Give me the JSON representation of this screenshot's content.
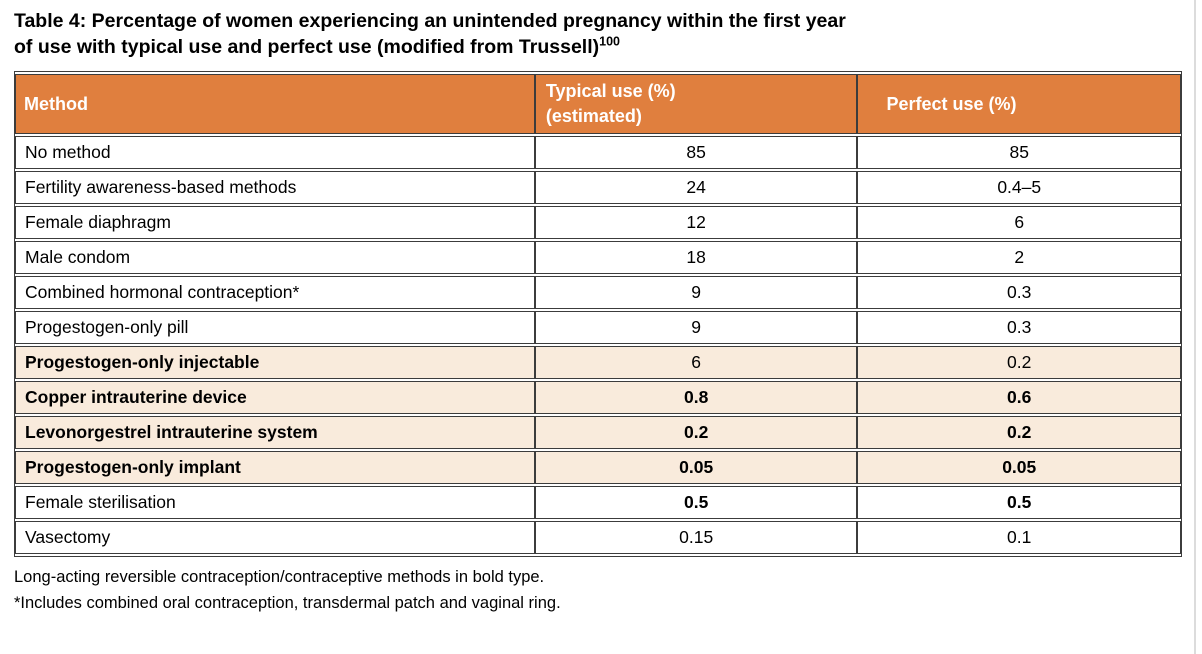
{
  "title": {
    "line1": "Table 4: Percentage of women experiencing an unintended pregnancy within the first year",
    "line2": "of use with typical use and perfect use (modified from Trussell)",
    "reference": "100"
  },
  "table": {
    "header": {
      "method": "Method",
      "typical_line1": "Typical use (%)",
      "typical_line2": "(estimated)",
      "perfect": "Perfect use (%)"
    },
    "rows": [
      {
        "method": "No method",
        "typical": "85",
        "perfect": "85",
        "method_bold": false,
        "values_bold": false,
        "highlight": false
      },
      {
        "method": "Fertility awareness-based methods",
        "typical": "24",
        "perfect": "0.4–5",
        "method_bold": false,
        "values_bold": false,
        "highlight": false
      },
      {
        "method": "Female diaphragm",
        "typical": "12",
        "perfect": "6",
        "method_bold": false,
        "values_bold": false,
        "highlight": false
      },
      {
        "method": "Male condom",
        "typical": "18",
        "perfect": "2",
        "method_bold": false,
        "values_bold": false,
        "highlight": false
      },
      {
        "method": "Combined hormonal contraception*",
        "typical": "9",
        "perfect": "0.3",
        "method_bold": false,
        "values_bold": false,
        "highlight": false
      },
      {
        "method": "Progestogen-only pill",
        "typical": "9",
        "perfect": "0.3",
        "method_bold": false,
        "values_bold": false,
        "highlight": false
      },
      {
        "method": "Progestogen-only injectable",
        "typical": "6",
        "perfect": "0.2",
        "method_bold": true,
        "values_bold": false,
        "highlight": true
      },
      {
        "method": "Copper intrauterine device",
        "typical": "0.8",
        "perfect": "0.6",
        "method_bold": true,
        "values_bold": true,
        "highlight": true
      },
      {
        "method": "Levonorgestrel intrauterine system",
        "typical": "0.2",
        "perfect": "0.2",
        "method_bold": true,
        "values_bold": true,
        "highlight": true
      },
      {
        "method": "Progestogen-only implant",
        "typical": "0.05",
        "perfect": "0.05",
        "method_bold": true,
        "values_bold": true,
        "highlight": true
      },
      {
        "method": "Female sterilisation",
        "typical": "0.5",
        "perfect": "0.5",
        "method_bold": false,
        "values_bold": true,
        "highlight": false
      },
      {
        "method": "Vasectomy",
        "typical": "0.15",
        "perfect": "0.1",
        "method_bold": false,
        "values_bold": false,
        "highlight": false
      }
    ]
  },
  "footnotes": [
    "Long-acting reversible contraception/contraceptive methods in bold type.",
    "*Includes combined oral contraception, transdermal patch and vaginal ring."
  ],
  "colors": {
    "header_bg": "#E07F3E",
    "header_text": "#FFFFFF",
    "highlight_row_bg": "#F9EBDC",
    "border": "#3C3C3C",
    "text": "#000000",
    "page_bg": "#FFFFFF"
  }
}
